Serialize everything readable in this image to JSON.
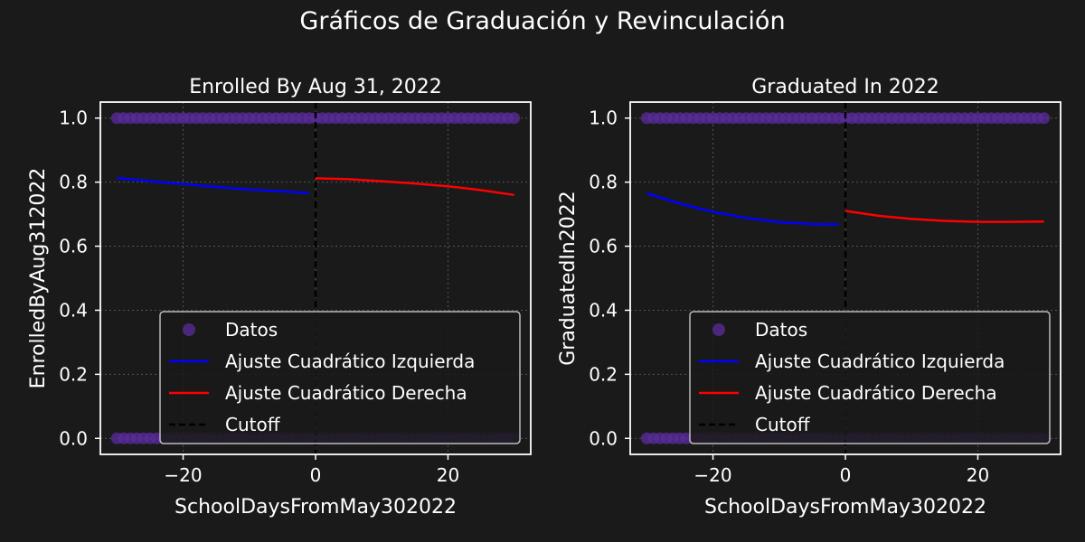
{
  "suptitle": "Gráficos de Graduación y Revinculación",
  "colors": {
    "background": "#1a1a1a",
    "axes_edge": "#ffffff",
    "grid": "#555555",
    "data_points": "#5b2c9c",
    "fit_left": "#0000ff",
    "fit_right": "#ff0000",
    "cutoff": "#000000",
    "legend_bg": "#1a1a1a",
    "legend_edge": "#bbbbbb"
  },
  "legend": {
    "datos": "Datos",
    "fit_left": "Ajuste Cuadrático Izquierda",
    "fit_right": "Ajuste Cuadrático Derecha",
    "cutoff": "Cutoff"
  },
  "chart_data": [
    {
      "type": "scatter",
      "title": "Enrolled By Aug 31, 2022",
      "xlabel": "SchoolDaysFromMay302022",
      "ylabel": "EnrolledByAug312022",
      "xlim": [
        -32.5,
        32.5
      ],
      "ylim": [
        -0.05,
        1.05
      ],
      "xticks": [
        -20,
        0,
        20
      ],
      "xtick_labels": [
        "−20",
        "0",
        "20"
      ],
      "yticks": [
        0.0,
        0.2,
        0.4,
        0.6,
        0.8,
        1.0
      ],
      "ytick_labels": [
        "0.0",
        "0.2",
        "0.4",
        "0.6",
        "0.8",
        "1.0"
      ],
      "grid": true,
      "legend_placement": "lower right",
      "scatter_y_values": [
        0,
        1
      ],
      "scatter_x_range": [
        -30,
        30
      ],
      "cutoff_x": 0,
      "series": [
        {
          "name": "Ajuste Cuadrático Izquierda",
          "x": [
            -30,
            -25,
            -20,
            -15,
            -10,
            -5,
            -1
          ],
          "y": [
            0.813,
            0.803,
            0.794,
            0.785,
            0.777,
            0.771,
            0.766
          ]
        },
        {
          "name": "Ajuste Cuadrático Derecha",
          "x": [
            0,
            5,
            10,
            15,
            20,
            25,
            30
          ],
          "y": [
            0.812,
            0.809,
            0.803,
            0.796,
            0.787,
            0.775,
            0.76
          ]
        }
      ]
    },
    {
      "type": "scatter",
      "title": "Graduated In 2022",
      "xlabel": "SchoolDaysFromMay302022",
      "ylabel": "GraduatedIn2022",
      "xlim": [
        -32.5,
        32.5
      ],
      "ylim": [
        -0.05,
        1.05
      ],
      "xticks": [
        -20,
        0,
        20
      ],
      "xtick_labels": [
        "−20",
        "0",
        "20"
      ],
      "yticks": [
        0.0,
        0.2,
        0.4,
        0.6,
        0.8,
        1.0
      ],
      "ytick_labels": [
        "0.0",
        "0.2",
        "0.4",
        "0.6",
        "0.8",
        "1.0"
      ],
      "grid": true,
      "legend_placement": "lower right",
      "scatter_y_values": [
        0,
        1
      ],
      "scatter_x_range": [
        -30,
        30
      ],
      "cutoff_x": 0,
      "series": [
        {
          "name": "Ajuste Cuadrático Izquierda",
          "x": [
            -30,
            -25,
            -20,
            -15,
            -10,
            -5,
            -1
          ],
          "y": [
            0.765,
            0.733,
            0.707,
            0.688,
            0.675,
            0.669,
            0.668
          ]
        },
        {
          "name": "Ajuste Cuadrático Derecha",
          "x": [
            0,
            5,
            10,
            15,
            20,
            25,
            30
          ],
          "y": [
            0.71,
            0.695,
            0.685,
            0.679,
            0.676,
            0.676,
            0.677
          ]
        }
      ]
    }
  ]
}
